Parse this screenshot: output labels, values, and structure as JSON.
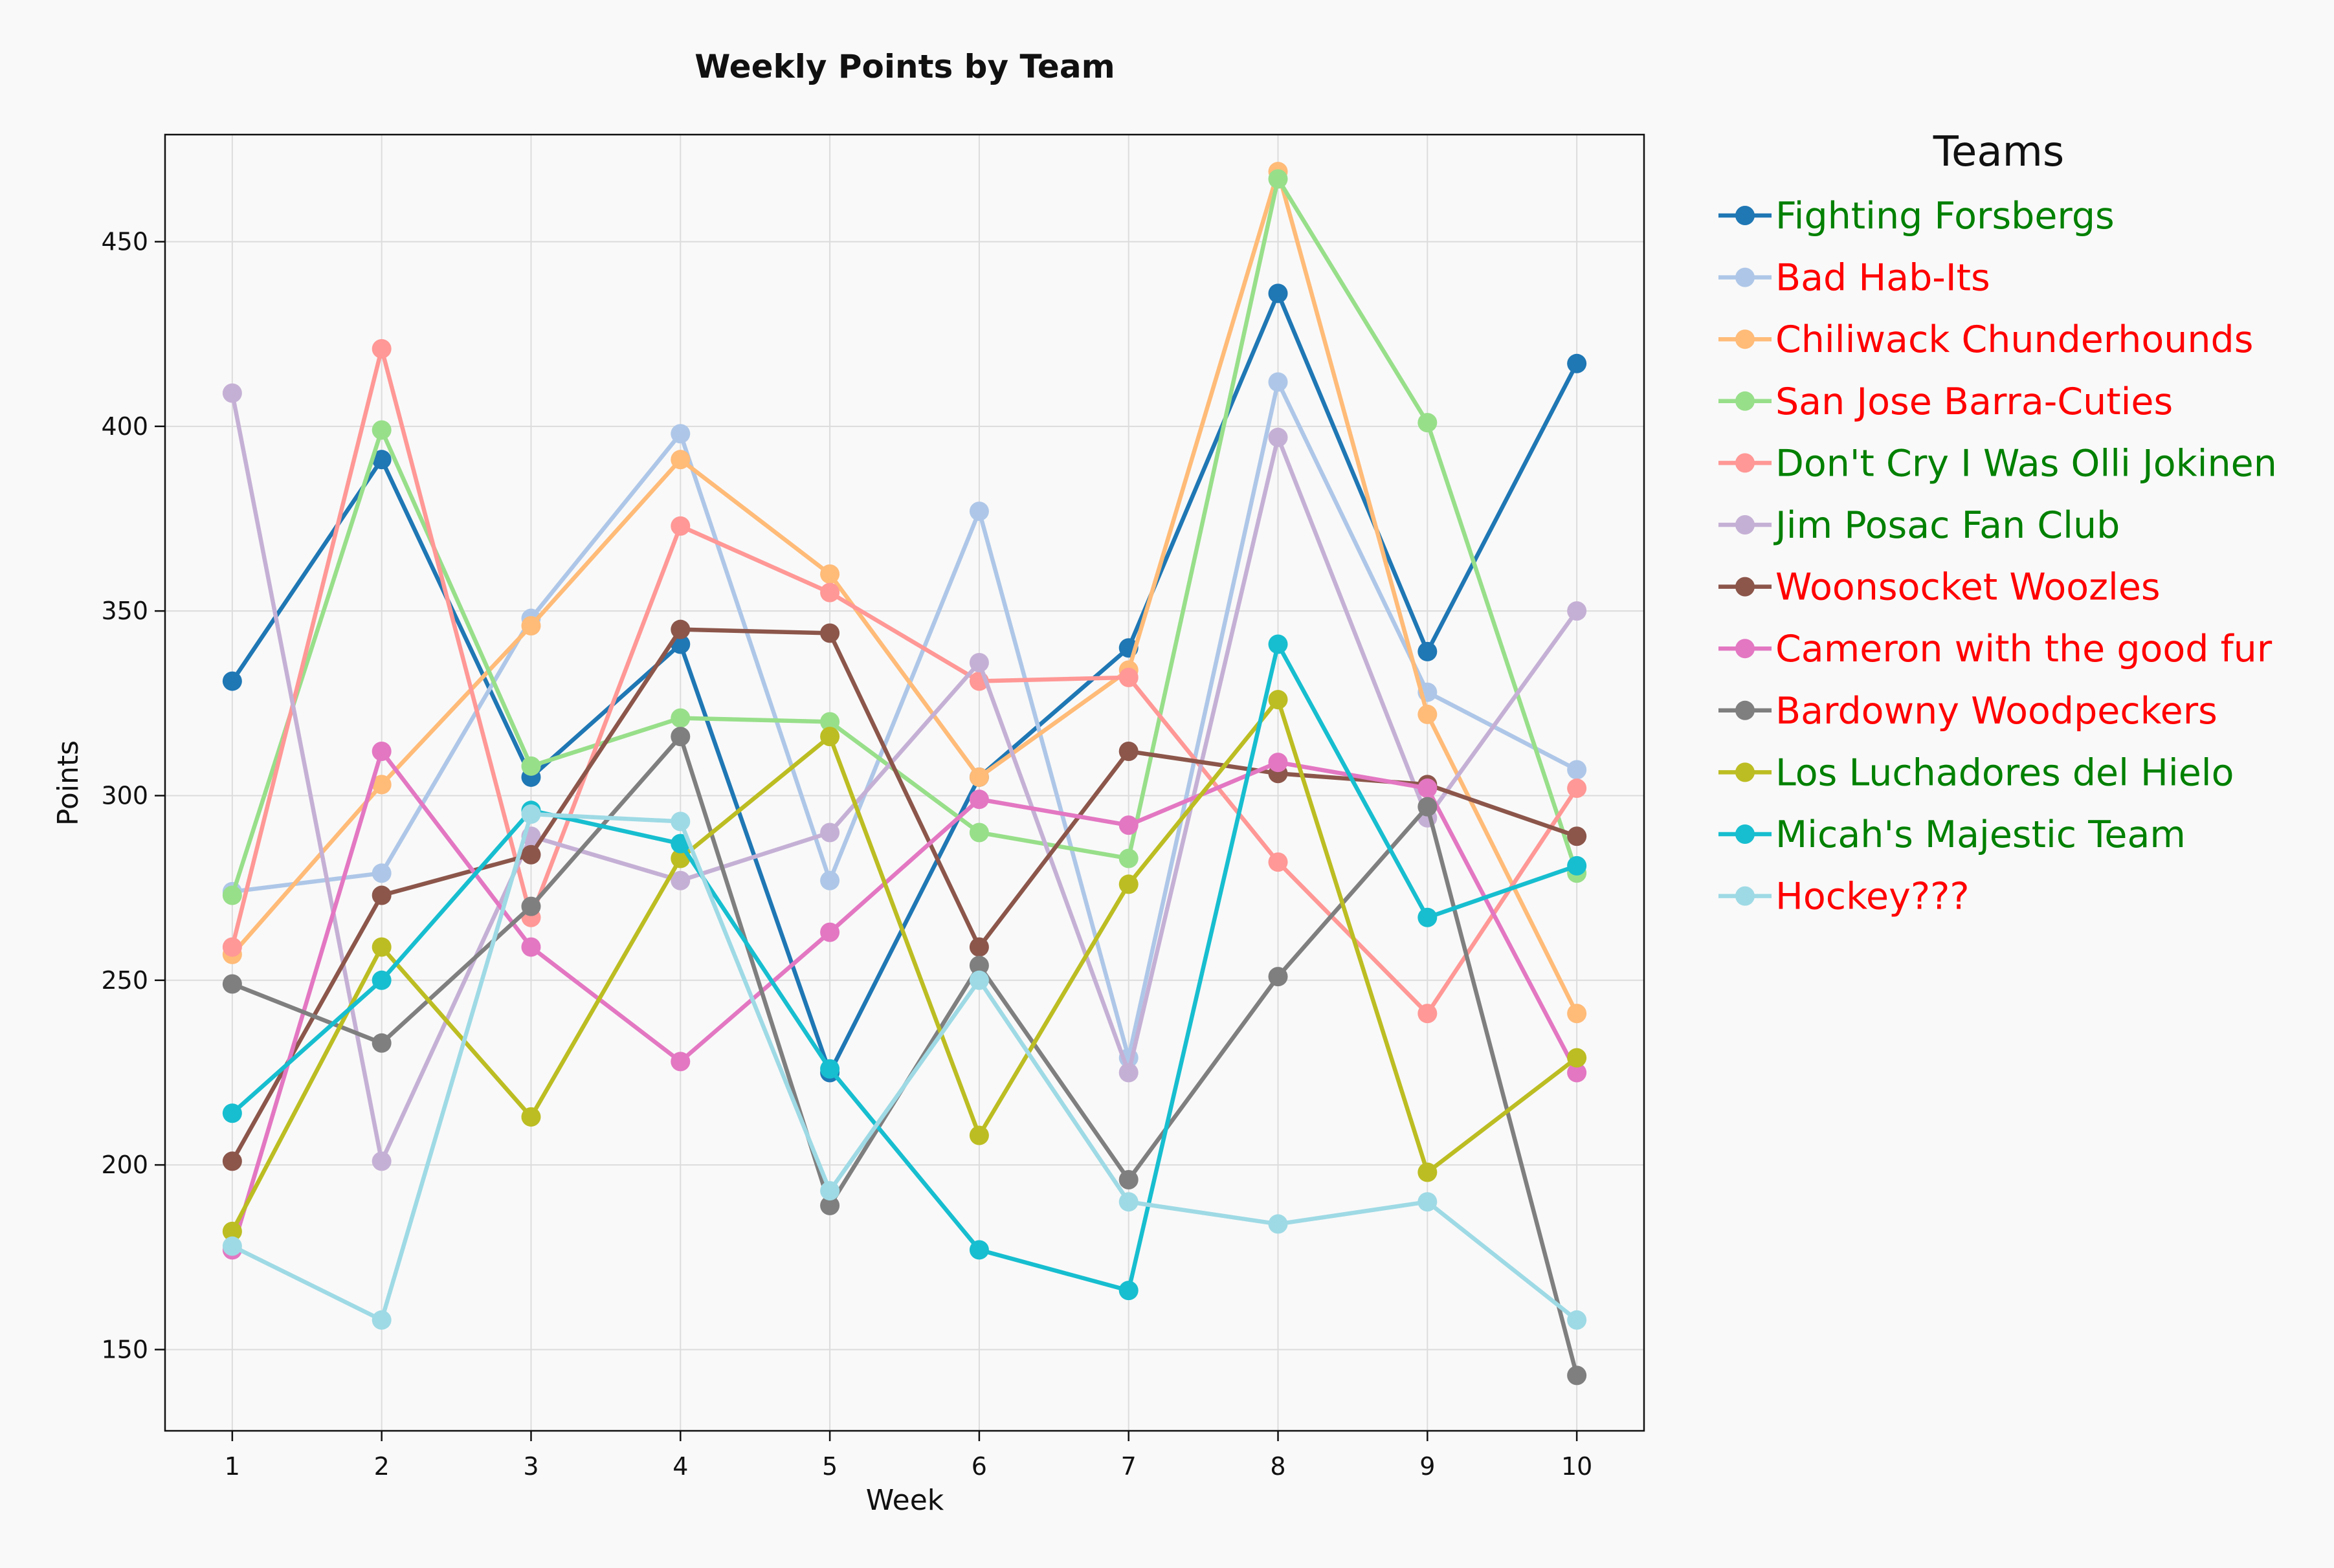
{
  "chart_data": {
    "type": "line",
    "title": "Weekly Points by Team",
    "xlabel": "Week",
    "ylabel": "Points",
    "x": [
      1,
      2,
      3,
      4,
      5,
      6,
      7,
      8,
      9,
      10
    ],
    "x_ticks": [
      "1",
      "2",
      "3",
      "4",
      "5",
      "6",
      "7",
      "8",
      "9",
      "10"
    ],
    "xlim": [
      0.55,
      10.45
    ],
    "ylim": [
      128,
      479
    ],
    "y_ticks": [
      "150",
      "200",
      "250",
      "300",
      "350",
      "400",
      "450"
    ],
    "grid": true,
    "legend": {
      "title": "Teams",
      "placement": "outside-right"
    },
    "series": [
      {
        "name": "Fighting Forsbergs",
        "color": "#1f77b4",
        "label_color": "#008000",
        "values": [
          331,
          391,
          305,
          341,
          225,
          305,
          340,
          436,
          339,
          417
        ]
      },
      {
        "name": "Bad Hab-Its",
        "color": "#aec7e8",
        "label_color": "#ff0000",
        "values": [
          274,
          279,
          348,
          398,
          277,
          377,
          229,
          412,
          328,
          307
        ]
      },
      {
        "name": "Chiliwack Chunderhounds",
        "color": "#ffbb78",
        "label_color": "#ff0000",
        "values": [
          257,
          303,
          346,
          391,
          360,
          305,
          334,
          469,
          322,
          241
        ]
      },
      {
        "name": "San Jose Barra-Cuties",
        "color": "#98df8a",
        "label_color": "#ff0000",
        "values": [
          273,
          399,
          308,
          321,
          320,
          290,
          283,
          467,
          401,
          279
        ]
      },
      {
        "name": "Don't Cry I Was Olli Jokinen",
        "color": "#ff9896",
        "label_color": "#008000",
        "values": [
          259,
          421,
          267,
          373,
          355,
          331,
          332,
          282,
          241,
          302
        ]
      },
      {
        "name": "Jim Posac Fan Club",
        "color": "#c5b0d5",
        "label_color": "#008000",
        "values": [
          409,
          201,
          289,
          277,
          290,
          336,
          225,
          397,
          294,
          350
        ]
      },
      {
        "name": "Woonsocket Woozles",
        "color": "#8c564b",
        "label_color": "#ff0000",
        "values": [
          201,
          273,
          284,
          345,
          344,
          259,
          312,
          306,
          303,
          289
        ]
      },
      {
        "name": "Cameron with the good fur",
        "color": "#e377c2",
        "label_color": "#ff0000",
        "values": [
          177,
          312,
          259,
          228,
          263,
          299,
          292,
          309,
          302,
          225
        ]
      },
      {
        "name": "Bardowny Woodpeckers",
        "color": "#7f7f7f",
        "label_color": "#ff0000",
        "values": [
          249,
          233,
          270,
          316,
          189,
          254,
          196,
          251,
          297,
          143
        ]
      },
      {
        "name": "Los Luchadores del Hielo",
        "color": "#bcbd22",
        "label_color": "#008000",
        "values": [
          182,
          259,
          213,
          283,
          316,
          208,
          276,
          326,
          198,
          229
        ]
      },
      {
        "name": "Micah's Majestic Team",
        "color": "#17becf",
        "label_color": "#008000",
        "values": [
          214,
          250,
          296,
          287,
          226,
          177,
          166,
          341,
          267,
          281
        ]
      },
      {
        "name": "Hockey???",
        "color": "#9edae5",
        "label_color": "#ff0000",
        "values": [
          178,
          158,
          295,
          293,
          193,
          250,
          190,
          184,
          190,
          158
        ]
      }
    ]
  }
}
